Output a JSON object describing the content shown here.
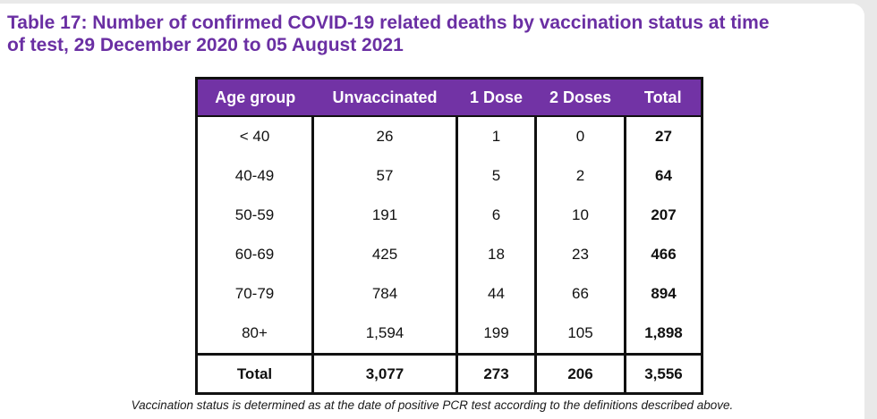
{
  "page": {
    "title_lines": [
      "Table 17: Number of confirmed COVID-19 related deaths by vaccination status at time",
      "of test, 29 December 2020 to 05 August 2021"
    ],
    "footnote": "Vaccination status is determined as at the date of positive PCR test according to the definitions described above."
  },
  "chart_data": {
    "type": "table",
    "title": "Number of confirmed COVID-19 related deaths by vaccination status at time of test, 29 December 2020 to 05 August 2021",
    "columns": [
      "Age group",
      "Unvaccinated",
      "1 Dose",
      "2 Doses",
      "Total"
    ],
    "rows": [
      [
        "< 40",
        "26",
        "1",
        "0",
        "27"
      ],
      [
        "40-49",
        "57",
        "5",
        "2",
        "64"
      ],
      [
        "50-59",
        "191",
        "6",
        "10",
        "207"
      ],
      [
        "60-69",
        "425",
        "18",
        "23",
        "466"
      ],
      [
        "70-79",
        "784",
        "44",
        "66",
        "894"
      ],
      [
        "80+",
        "1,594",
        "199",
        "105",
        "1,898"
      ]
    ],
    "total_row": [
      "Total",
      "3,077",
      "273",
      "206",
      "3,556"
    ]
  },
  "colors": {
    "title_purple": "#6a2fa3",
    "header_purple": "#7233a5",
    "table_border": "#111111",
    "page_background": "#ffffff",
    "outer_background": "#e9e9e9"
  }
}
